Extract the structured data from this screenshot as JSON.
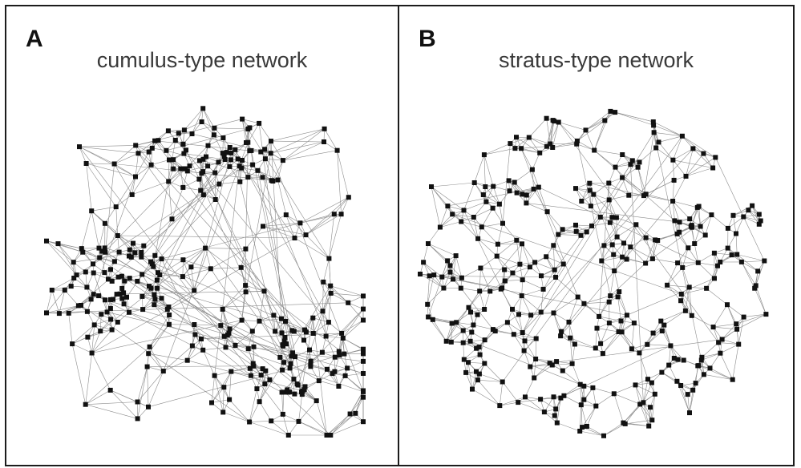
{
  "figure": {
    "panels": [
      {
        "letter": "A",
        "title": "cumulus-type network"
      },
      {
        "letter": "B",
        "title": "stratus-type network"
      }
    ]
  },
  "colors": {
    "node": "#111111",
    "edge": "#8c8c8c",
    "frame": "#1c1c1c"
  }
}
